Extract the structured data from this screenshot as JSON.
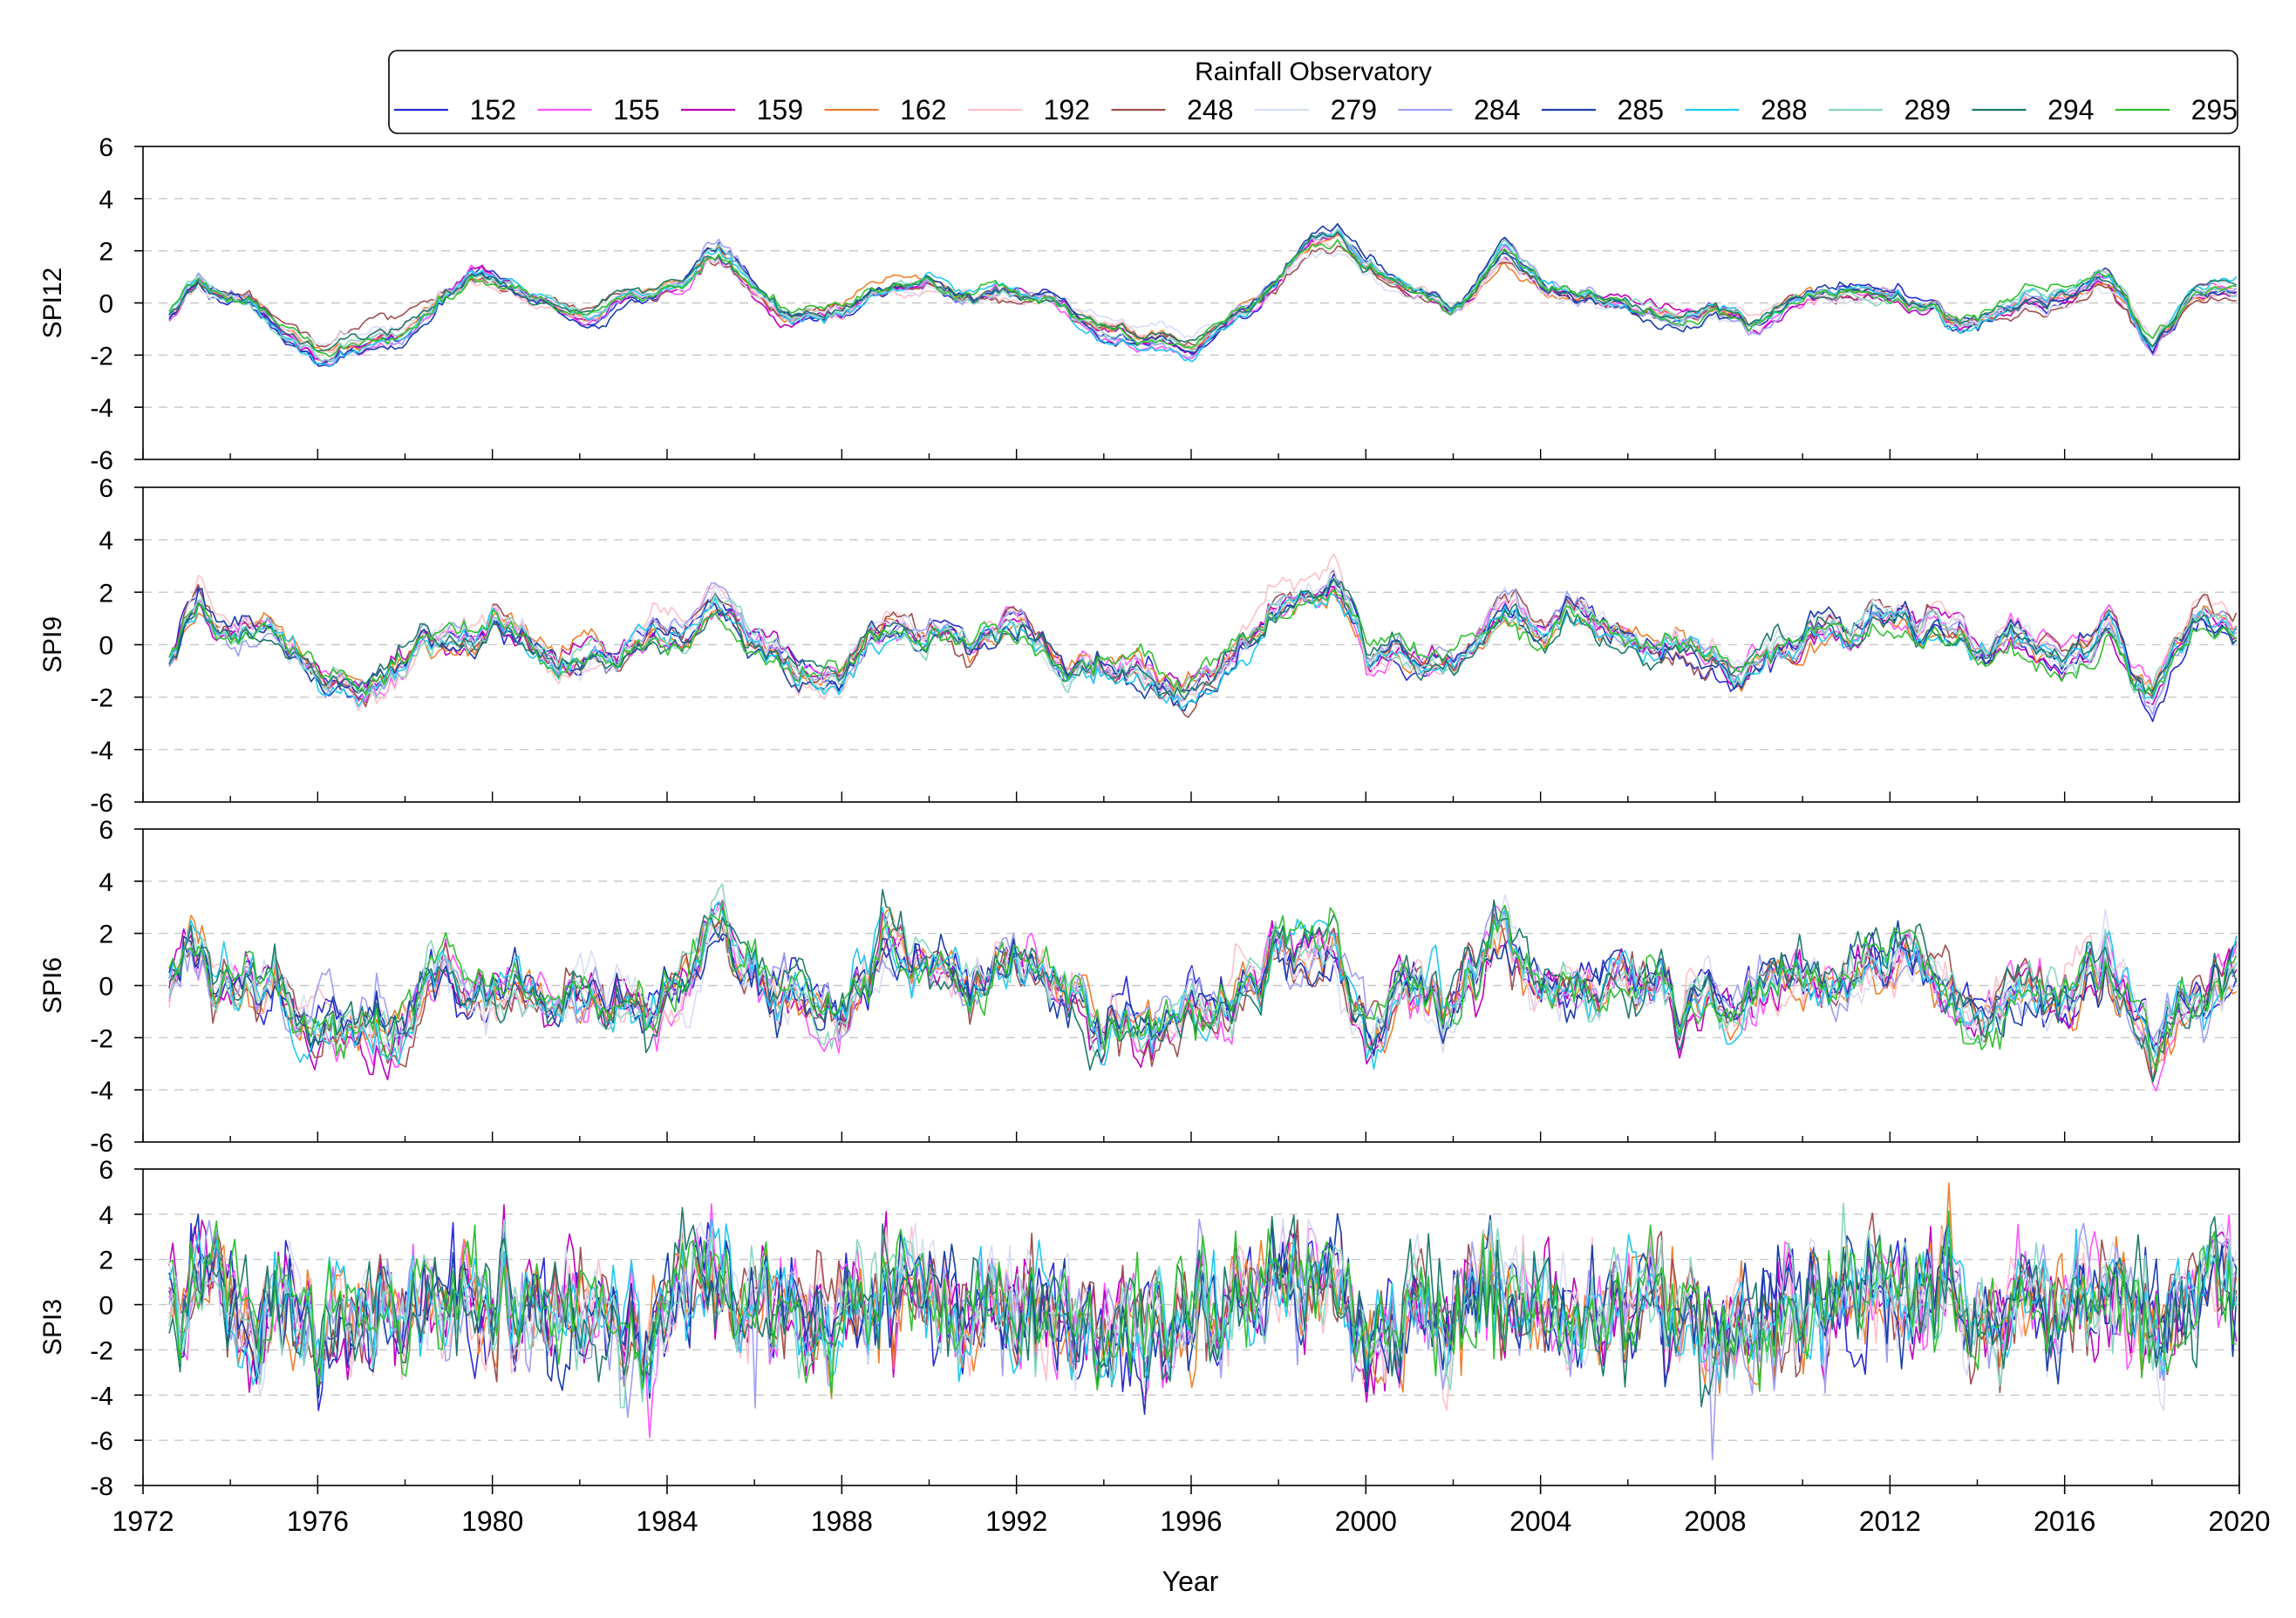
{
  "legend": {
    "title": "Rainfall Observatory",
    "entries": [
      {
        "name": "152",
        "color": "#2a2ad6"
      },
      {
        "name": "155",
        "color": "#ff55ff"
      },
      {
        "name": "159",
        "color": "#c000c0"
      },
      {
        "name": "162",
        "color": "#f08030"
      },
      {
        "name": "192",
        "color": "#ffc0c8"
      },
      {
        "name": "248",
        "color": "#a05050"
      },
      {
        "name": "279",
        "color": "#d8ddf4"
      },
      {
        "name": "284",
        "color": "#9f9ff5"
      },
      {
        "name": "285",
        "color": "#1a3fa8"
      },
      {
        "name": "288",
        "color": "#22c8f0"
      },
      {
        "name": "289",
        "color": "#88d8c0"
      },
      {
        "name": "294",
        "color": "#1f7a6a"
      },
      {
        "name": "295",
        "color": "#30c030"
      }
    ]
  },
  "chart_data": {
    "type": "line",
    "xlabel": "Year",
    "x_range": [
      1972,
      2020
    ],
    "x_ticks": [
      "1972",
      "1976",
      "1980",
      "1984",
      "1988",
      "1992",
      "1996",
      "2000",
      "2004",
      "2008",
      "2012",
      "2016",
      "2020"
    ],
    "grid": "dashed horizontal",
    "legend_position": "top",
    "panels": [
      {
        "ylabel": "SPI12",
        "ylim": [
          -6,
          6
        ],
        "y_ticks": [
          "6",
          "4",
          "2",
          "0",
          "-2",
          "-4",
          "-6"
        ],
        "anchors_x": [
          1972.6,
          1973.3,
          1974,
          1975,
          1976,
          1977,
          1977.8,
          1978.5,
          1979.5,
          1980.5,
          1981.5,
          1982.5,
          1983.5,
          1984.3,
          1985.2,
          1986,
          1987,
          1988,
          1989,
          1990,
          1991,
          1991.8,
          1993,
          1994,
          1995,
          1996,
          1997,
          1998,
          1999.3,
          2000,
          2001,
          2002,
          2003.2,
          2004,
          2005,
          2006,
          2007,
          2008,
          2009,
          2010,
          2011,
          2012,
          2013,
          2014,
          2015,
          2016,
          2017,
          2018,
          2019,
          2020
        ],
        "mean": [
          -0.6,
          0.8,
          0.3,
          -0.5,
          -1.3,
          -1.8,
          -1.5,
          -0.5,
          0.9,
          0.7,
          -0.3,
          -0.8,
          0.2,
          0.6,
          1.8,
          0.9,
          -0.5,
          -0.8,
          0.3,
          0.8,
          0.2,
          0.7,
          0.1,
          -1.5,
          -1.7,
          -1.8,
          -0.4,
          0.9,
          2.0,
          1.1,
          0.6,
          -0.3,
          1.9,
          0.6,
          0.1,
          0.3,
          -0.5,
          -0.2,
          -1.0,
          0.1,
          0.6,
          0.5,
          0.6,
          -0.6,
          0.3,
          0.1,
          0.8,
          -1.5,
          0.4,
          0.5
        ]
      },
      {
        "ylabel": "SPI9",
        "ylim": [
          -6,
          6
        ],
        "y_ticks": [
          "6",
          "4",
          "2",
          "0",
          "-2",
          "-4",
          "-6"
        ],
        "anchors_x": [
          1972.6,
          1973.3,
          1974,
          1975,
          1976,
          1977,
          1977.8,
          1978.5,
          1979.5,
          1980.5,
          1981.5,
          1982.5,
          1983.5,
          1984.3,
          1985.2,
          1986,
          1987,
          1988,
          1989,
          1990,
          1991,
          1991.8,
          1993,
          1994,
          1995,
          1996,
          1997,
          1998,
          1999.3,
          2000,
          2001,
          2002,
          2003.2,
          2004,
          2005,
          2006,
          2007,
          2008,
          2009,
          2010,
          2011,
          2012,
          2013,
          2014,
          2015,
          2016,
          2017,
          2018,
          2019,
          2020
        ],
        "mean": [
          -0.8,
          1.6,
          0.4,
          0.5,
          -1.2,
          -1.6,
          -1.0,
          0.6,
          0.9,
          0.5,
          -0.9,
          -0.8,
          0.0,
          0.6,
          2.1,
          0.6,
          -0.3,
          -1.2,
          0.8,
          1.0,
          0.1,
          1.2,
          -0.6,
          -1.3,
          -1.7,
          -1.6,
          -0.5,
          1.1,
          2.4,
          -0.4,
          -0.2,
          -0.6,
          1.9,
          0.3,
          0.4,
          0.4,
          -0.6,
          -0.4,
          -1.2,
          0.3,
          0.6,
          0.9,
          1.2,
          -0.6,
          0.6,
          -0.3,
          0.5,
          -1.8,
          0.8,
          0.5
        ]
      },
      {
        "ylabel": "SPI6",
        "ylim": [
          -6,
          6
        ],
        "y_ticks": [
          "6",
          "4",
          "2",
          "0",
          "-2",
          "-4",
          "-6"
        ],
        "anchors_x": [
          1972.6,
          1973.3,
          1974,
          1975,
          1976,
          1977,
          1977.8,
          1978.5,
          1979.5,
          1980.5,
          1981.5,
          1982.5,
          1983.5,
          1984.3,
          1985.2,
          1986,
          1987,
          1988,
          1989,
          1990,
          1991,
          1991.8,
          1993,
          1994,
          1995,
          1996,
          1997,
          1998,
          1999.3,
          2000,
          2001,
          2002,
          2003.2,
          2004,
          2005,
          2006,
          2007,
          2008,
          2009,
          2010,
          2011,
          2012,
          2013,
          2014,
          2015,
          2016,
          2017,
          2018,
          2019,
          2020
        ],
        "mean": [
          -0.5,
          1.7,
          0.1,
          0.3,
          -1.5,
          -1.2,
          -0.8,
          0.5,
          0.7,
          0.1,
          -1.2,
          -0.6,
          -1.0,
          0.5,
          1.7,
          0.0,
          -0.5,
          -1.3,
          0.7,
          1.1,
          0.2,
          1.1,
          -0.5,
          -1.4,
          -1.7,
          -1.2,
          -0.2,
          1.6,
          1.8,
          -2.0,
          -0.3,
          -0.7,
          1.5,
          0.1,
          0.2,
          0.2,
          -0.4,
          -0.7,
          -0.8,
          0.5,
          0.4,
          1.0,
          0.3,
          -1.0,
          0.5,
          -0.2,
          0.9,
          -2.0,
          0.5,
          0.9
        ]
      },
      {
        "ylabel": "SPI3",
        "ylim": [
          -8,
          6
        ],
        "y_ticks": [
          "6",
          "4",
          "2",
          "0",
          "-2",
          "-4",
          "-6",
          "-8"
        ],
        "anchors_x": [
          1972.6,
          1973.3,
          1974,
          1975,
          1976,
          1977,
          1977.8,
          1978.5,
          1979.5,
          1980.5,
          1981.5,
          1982.5,
          1983.5,
          1984.3,
          1985.2,
          1986,
          1987,
          1988,
          1989,
          1990,
          1991,
          1991.8,
          1993,
          1994,
          1995,
          1996,
          1997,
          1998,
          1999.3,
          2000,
          2001,
          2002,
          2003.2,
          2004,
          2005,
          2006,
          2007,
          2008,
          2009,
          2010,
          2011,
          2012,
          2013,
          2014,
          2015,
          2016,
          2017,
          2018,
          2019,
          2020
        ],
        "mean": [
          -0.3,
          1.2,
          -0.3,
          0.2,
          -1.0,
          -0.5,
          -1.0,
          0.3,
          0.2,
          -0.3,
          -0.8,
          -0.5,
          -1.8,
          0.5,
          1.3,
          -0.3,
          -0.6,
          -0.9,
          0.8,
          0.4,
          0.0,
          0.6,
          -0.6,
          -1.0,
          -1.1,
          -0.8,
          -0.6,
          1.8,
          1.0,
          -2.0,
          -0.3,
          -0.5,
          1.2,
          0.1,
          -0.2,
          -0.6,
          -0.8,
          -1.3,
          -0.6,
          0.3,
          0.1,
          0.8,
          0.0,
          -1.0,
          0.5,
          0.0,
          1.2,
          -1.5,
          0.6,
          0.8
        ]
      }
    ]
  }
}
